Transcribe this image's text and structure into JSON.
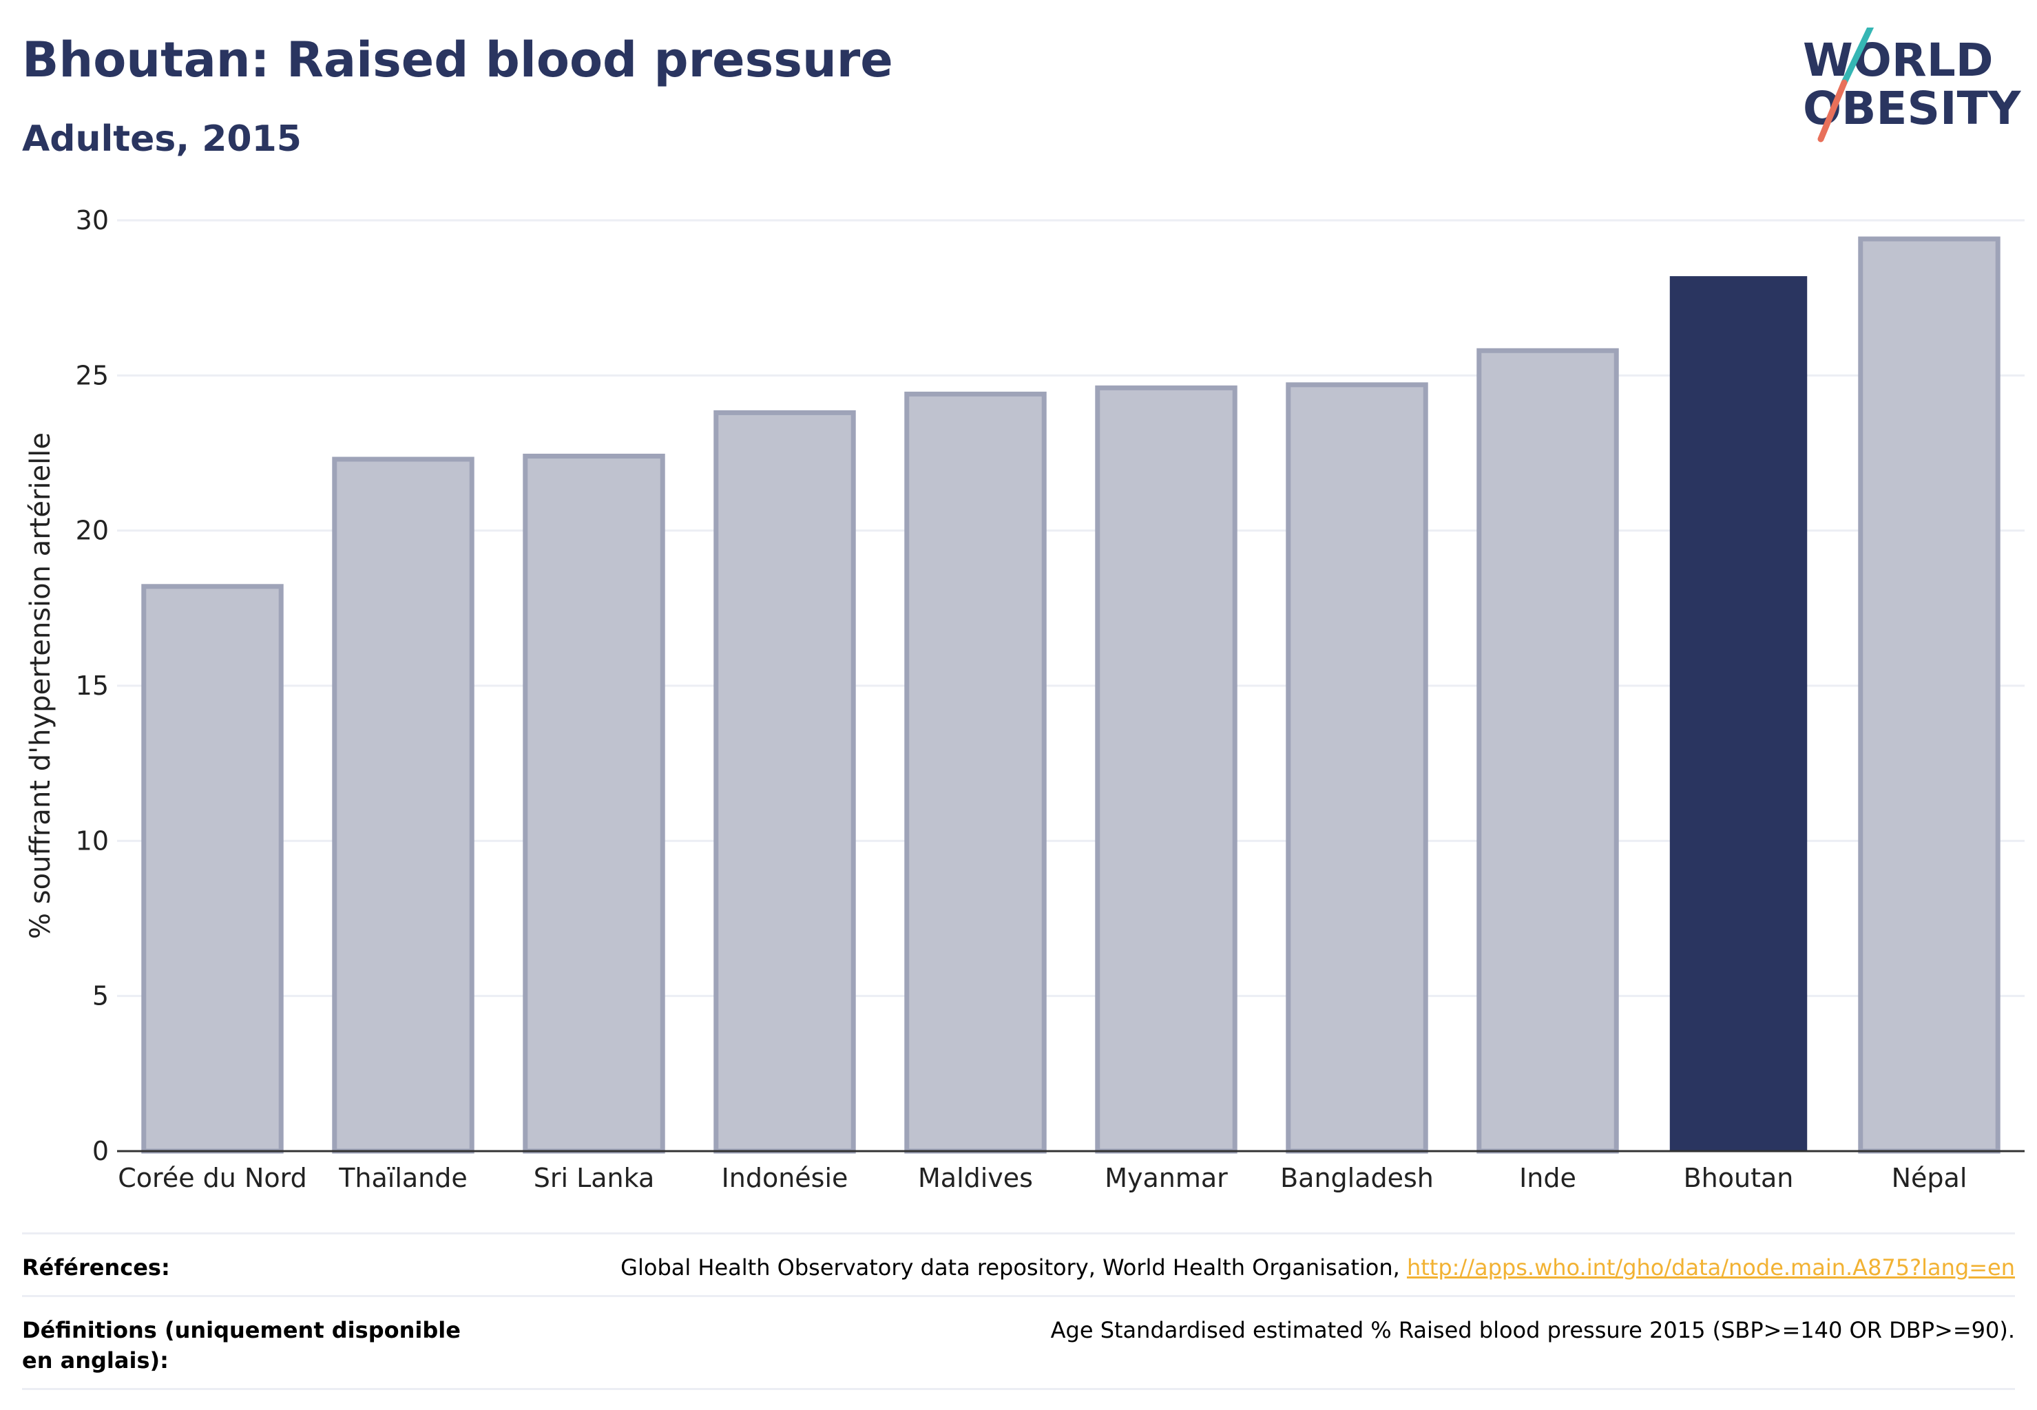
{
  "header": {
    "title": "Bhoutan: Raised blood pressure",
    "subtitle": "Adultes, 2015"
  },
  "logo": {
    "line1": "WORLD",
    "line2": "OBESITY",
    "icon": "world-obesity-logo",
    "accent_teal": "#35b6b4",
    "accent_coral": "#e8705a"
  },
  "chart_data": {
    "type": "bar",
    "categories": [
      "Corée du Nord",
      "Thaïlande",
      "Sri Lanka",
      "Indonésie",
      "Maldives",
      "Myanmar",
      "Bangladesh",
      "Inde",
      "Bhoutan",
      "Népal"
    ],
    "values": [
      18.2,
      22.3,
      22.4,
      23.8,
      24.4,
      24.6,
      24.7,
      25.8,
      28.2,
      29.4
    ],
    "highlight": "Bhoutan",
    "title": "Bhoutan: Raised blood pressure",
    "subtitle": "Adultes, 2015",
    "xlabel": "",
    "ylabel": "% souffrant d'hypertension artérielle",
    "ylim": [
      0,
      30
    ],
    "yticks": [
      0,
      5,
      10,
      15,
      20,
      25,
      30
    ],
    "grid": true,
    "colors": {
      "highlight": "#2a3560",
      "other_fill": "#bfc2cf",
      "other_stroke": "#9ea3b8",
      "grid": "#eceef4",
      "axis": "#333333"
    }
  },
  "references": {
    "sources_label": "Références:",
    "sources_text": "Global Health Observatory data repository, World Health Organisation, ",
    "sources_link": "http://apps.who.int/gho/data/node.main.A875?lang=en",
    "definitions_label": "Définitions (uniquement disponible en anglais):",
    "definitions_text": "Age Standardised estimated % Raised blood pressure 2015 (SBP>=140 OR DBP>=90)."
  }
}
